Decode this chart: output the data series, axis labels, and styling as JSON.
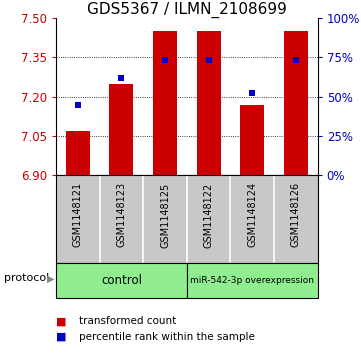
{
  "title": "GDS5367 / ILMN_2108699",
  "samples": [
    "GSM1148121",
    "GSM1148123",
    "GSM1148125",
    "GSM1148122",
    "GSM1148124",
    "GSM1148126"
  ],
  "bar_values": [
    7.07,
    7.25,
    7.45,
    7.45,
    7.17,
    7.45
  ],
  "blue_values_left": [
    7.17,
    7.27,
    7.34,
    7.34,
    7.215,
    7.34
  ],
  "baseline": 6.9,
  "ylim_left": [
    6.9,
    7.5
  ],
  "ylim_right": [
    0,
    100
  ],
  "yticks_left": [
    6.9,
    7.05,
    7.2,
    7.35,
    7.5
  ],
  "yticks_right": [
    0,
    25,
    50,
    75,
    100
  ],
  "bar_color": "#cc0000",
  "blue_color": "#0000cc",
  "bar_width": 0.55,
  "control_label": "control",
  "mir_label": "miR-542-3p overexpression",
  "protocol_label": "protocol",
  "legend_bar_label": "transformed count",
  "legend_blue_label": "percentile rank within the sample",
  "bg_color": "#ffffff",
  "plot_bg": "#ffffff",
  "tick_color_left": "#cc0000",
  "tick_color_right": "#0000cc",
  "title_fontsize": 11,
  "label_fontsize": 8.5,
  "sample_label_fontsize": 7,
  "grid_yticks": [
    7.05,
    7.2,
    7.35
  ],
  "group_colors": [
    "#90ee90",
    "#90ee90"
  ],
  "label_bg": "#c8c8c8"
}
